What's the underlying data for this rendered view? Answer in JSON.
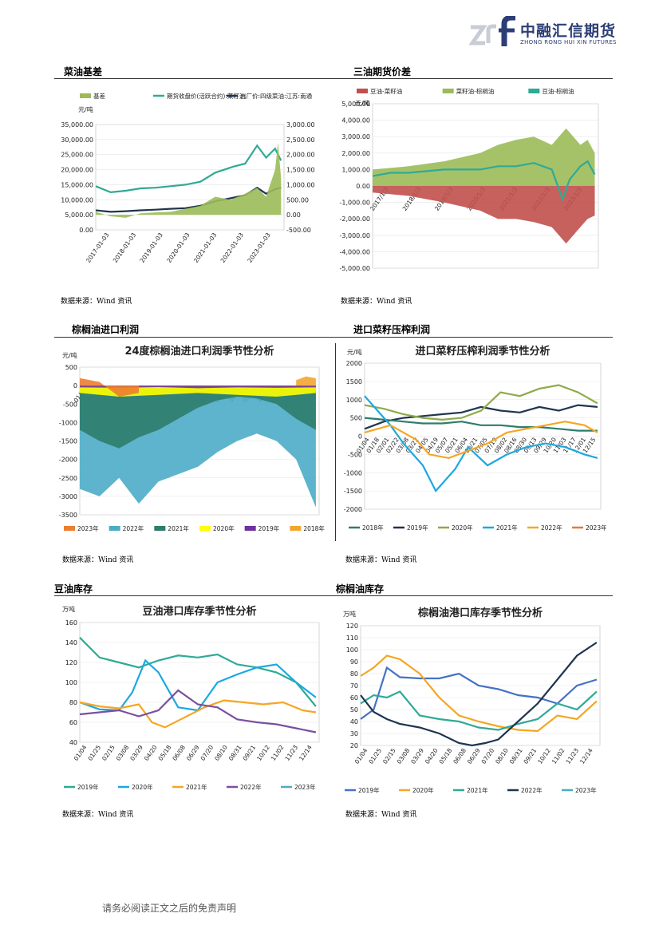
{
  "header": {
    "logo_cn": "中融汇信期货",
    "logo_en": "ZHONG RONG HUI XIN FUTURES"
  },
  "sections": {
    "s1": "菜油基差",
    "s2": "三油期货价差",
    "s3": "棕榈油进口利润",
    "s4": "进口菜籽压榨利润",
    "s5": "豆油库存",
    "s6": "棕榈油库存"
  },
  "source": "数据来源：Wind 资讯",
  "footer": "请务必阅读正文之后的免责声明",
  "chart_data": [
    {
      "id": "c1",
      "type": "line",
      "title": "",
      "unit_left": "元/吨",
      "legend": [
        "基差",
        "期货收盘价(活跃合约):菜籽油",
        "出厂价:四级菜油:江苏:南通"
      ],
      "colors": [
        "#9bbb59",
        "#2faa96",
        "#1f3550"
      ],
      "x_ticks": [
        "2017-01-03",
        "2018-01-03",
        "2019-01-03",
        "2020-01-03",
        "2021-01-03",
        "2022-01-03",
        "2023-01-03"
      ],
      "ylim_left": [
        0,
        35000
      ],
      "yticks_left": [
        "35,000.00",
        "30,000.00",
        "25,000.00",
        "20,000.00",
        "15,000.00",
        "10,000.00",
        "5,000.00",
        "0.00"
      ],
      "ylim_right": [
        -500,
        3000
      ],
      "yticks_right": [
        "3,000.00",
        "2,500.00",
        "2,000.00",
        "1,500.00",
        "1,000.00",
        "500.00",
        "0.00",
        "-500.00"
      ],
      "series": [
        {
          "name": "期货收盘价(活跃合约):菜籽油",
          "x": [
            2017,
            2017.5,
            2018,
            2018.5,
            2019,
            2019.5,
            2020,
            2020.5,
            2021,
            2021.3,
            2021.6,
            2022,
            2022.2,
            2022.4,
            2022.7,
            2023,
            2023.2
          ],
          "y": [
            14500,
            12500,
            13000,
            13800,
            14000,
            14500,
            15000,
            16000,
            19000,
            20000,
            21000,
            22000,
            25000,
            28000,
            24000,
            27000,
            23000
          ]
        },
        {
          "name": "出厂价:四级菜油:江苏:南通",
          "x": [
            2017,
            2017.5,
            2018,
            2018.5,
            2019,
            2019.5,
            2020,
            2020.5,
            2021,
            2021.5,
            2022,
            2022.4,
            2022.7,
            2023,
            2023.2
          ],
          "y": [
            6500,
            6000,
            6200,
            6500,
            6700,
            7000,
            7200,
            8000,
            9500,
            10500,
            11500,
            14000,
            12000,
            13500,
            14000
          ]
        },
        {
          "name": "基差",
          "x": [
            2017,
            2017.5,
            2018,
            2018.5,
            2019,
            2019.5,
            2020,
            2020.5,
            2021,
            2021.5,
            2022,
            2022.4,
            2022.7,
            2023,
            2023.1,
            2023.2
          ],
          "y": [
            100,
            -50,
            -100,
            50,
            80,
            100,
            200,
            300,
            600,
            500,
            700,
            900,
            600,
            1500,
            2400,
            1200
          ]
        }
      ]
    },
    {
      "id": "c2",
      "type": "area",
      "title": "",
      "unit": "元/吨",
      "legend": [
        "豆油-菜籽油",
        "菜籽油-棕榈油",
        "豆油-棕榈油"
      ],
      "colors": [
        "#c0504d",
        "#9bbb59",
        "#2faa96"
      ],
      "x_ticks": [
        "2017/1/3",
        "2018/1/3",
        "2019/1/3",
        "2020/1/3",
        "2021/1/3",
        "2022/1/3",
        "2023/1/3"
      ],
      "ylim": [
        -5000,
        5000
      ],
      "yticks": [
        "5,000.00",
        "4,000.00",
        "3,000.00",
        "2,000.00",
        "1,000.00",
        "0.00",
        "-1,000.00",
        "-2,000.00",
        "-3,000.00",
        "-4,000.00",
        "-5,000.00"
      ],
      "series": [
        {
          "name": "菜籽油-棕榈油",
          "x": [
            2017,
            2018,
            2019,
            2020,
            2020.5,
            2021,
            2021.5,
            2022,
            2022.4,
            2022.8,
            2023,
            2023.2
          ],
          "y": [
            1000,
            1200,
            1500,
            2000,
            2500,
            2800,
            3000,
            2500,
            3500,
            2500,
            2800,
            2000
          ]
        },
        {
          "name": "豆油-菜籽油",
          "x": [
            2017,
            2018,
            2019,
            2020,
            2020.5,
            2021,
            2021.5,
            2022,
            2022.4,
            2022.8,
            2023,
            2023.2
          ],
          "y": [
            -400,
            -600,
            -1000,
            -1500,
            -2000,
            -2000,
            -2200,
            -2500,
            -3500,
            -2500,
            -2000,
            -1800
          ]
        },
        {
          "name": "豆油-棕榈油",
          "x": [
            2017,
            2017.5,
            2018,
            2019,
            2020,
            2020.5,
            2021,
            2021.5,
            2022,
            2022.3,
            2022.5,
            2022.8,
            2023,
            2023.2
          ],
          "y": [
            600,
            800,
            800,
            1000,
            1000,
            1200,
            1200,
            1400,
            1000,
            -800,
            400,
            1200,
            1500,
            700
          ]
        }
      ]
    },
    {
      "id": "c3",
      "type": "area",
      "title": "24度棕榈油进口利润季节性分析",
      "unit": "元/吨",
      "legend": [
        "2023年",
        "2022年",
        "2021年",
        "2020年",
        "2019年",
        "2018年"
      ],
      "colors": [
        "#ed7d31",
        "#4bacc6",
        "#2e7d6b",
        "#ffff00",
        "#7030a0",
        "#f3a531"
      ],
      "x_ticks": [
        "01/04",
        "01/25",
        "02/15",
        "03/08",
        "03/29",
        "04/20",
        "05/18",
        "06/08",
        "06/29",
        "07/20",
        "08/10",
        "08/31",
        "09/21",
        "10/12",
        "11/02",
        "11/23",
        "12/14"
      ],
      "ylim": [
        -3500,
        500
      ],
      "yticks": [
        "500",
        "0",
        "-500",
        "-1000",
        "-1500",
        "-2000",
        "-2500",
        "-3000",
        "-3500"
      ],
      "series": [
        {
          "name": "2022年",
          "x": [
            0,
            30,
            60,
            90,
            120,
            150,
            180,
            210,
            240,
            270,
            300,
            330,
            360
          ],
          "y": [
            -2800,
            -3000,
            -2500,
            -3200,
            -2600,
            -2400,
            -2200,
            -1800,
            -1500,
            -1300,
            -1500,
            -2000,
            -3300
          ]
        },
        {
          "name": "2021年",
          "x": [
            0,
            30,
            60,
            90,
            120,
            150,
            180,
            210,
            240,
            270,
            300,
            330,
            360
          ],
          "y": [
            -1200,
            -1500,
            -1700,
            -1400,
            -1200,
            -900,
            -600,
            -400,
            -300,
            -350,
            -500,
            -900,
            -1200
          ]
        },
        {
          "name": "2020年",
          "x": [
            0,
            60,
            120,
            180,
            240,
            300,
            360
          ],
          "y": [
            -200,
            -300,
            -250,
            -200,
            -250,
            -300,
            -200
          ]
        },
        {
          "name": "2019年",
          "x": [
            0,
            60,
            120,
            180,
            240,
            300,
            360
          ],
          "y": [
            -50,
            -60,
            -40,
            -70,
            -50,
            -60,
            -50
          ]
        },
        {
          "name": "2023年",
          "x": [
            0,
            30,
            60,
            90
          ],
          "y": [
            200,
            100,
            -300,
            -200
          ]
        },
        {
          "name": "2018年",
          "x": [
            330,
            345,
            360
          ],
          "y": [
            150,
            250,
            200
          ]
        }
      ]
    },
    {
      "id": "c4",
      "type": "line",
      "title": "进口菜籽压榨利润季节性分析",
      "unit": "元/吨",
      "legend": [
        "2018年",
        "2019年",
        "2020年",
        "2021年",
        "2022年",
        "2023年"
      ],
      "colors": [
        "#2e7d6b",
        "#1f3550",
        "#8faa4a",
        "#1ba8e0",
        "#f5a623",
        "#e07b3c"
      ],
      "x_ticks": [
        "01/04",
        "01/18",
        "02/01",
        "02/22",
        "03/08",
        "03/22",
        "04/05",
        "04/19",
        "05/07",
        "05/21",
        "06/04",
        "06/21",
        "07/05",
        "07/19",
        "08/02",
        "08/16",
        "08/30",
        "09/13",
        "09/29",
        "10/20",
        "11/03",
        "11/17",
        "12/01",
        "12/15"
      ],
      "ylim": [
        -2000,
        2000
      ],
      "yticks": [
        "2000",
        "1500",
        "1000",
        "500",
        "0",
        "-500",
        "-1000",
        "-1500",
        "-2000"
      ],
      "series": [
        {
          "name": "2019年",
          "x": [
            0,
            30,
            60,
            90,
            120,
            150,
            180,
            210,
            240,
            270,
            300,
            330,
            360
          ],
          "y": [
            200,
            400,
            500,
            550,
            600,
            650,
            800,
            700,
            650,
            800,
            700,
            850,
            800
          ]
        },
        {
          "name": "2020年",
          "x": [
            0,
            30,
            60,
            90,
            120,
            150,
            180,
            210,
            240,
            270,
            300,
            330,
            360
          ],
          "y": [
            850,
            750,
            600,
            500,
            450,
            500,
            700,
            1200,
            1100,
            1300,
            1400,
            1200,
            900
          ]
        },
        {
          "name": "2018年",
          "x": [
            0,
            30,
            60,
            90,
            120,
            150,
            180,
            210,
            240,
            270,
            300,
            330,
            360
          ],
          "y": [
            500,
            450,
            400,
            350,
            350,
            400,
            300,
            300,
            250,
            250,
            200,
            150,
            150
          ]
        },
        {
          "name": "2021年",
          "x": [
            0,
            20,
            40,
            60,
            90,
            110,
            140,
            160,
            190,
            220,
            250,
            280,
            310,
            340,
            360
          ],
          "y": [
            1100,
            700,
            300,
            -200,
            -800,
            -1500,
            -900,
            -300,
            -800,
            -500,
            -300,
            -200,
            -300,
            -500,
            -600
          ]
        },
        {
          "name": "2022年",
          "x": [
            0,
            40,
            80,
            100,
            130,
            160,
            190,
            220,
            250,
            280,
            310,
            340,
            360
          ],
          "y": [
            100,
            300,
            -100,
            -500,
            -600,
            -400,
            -200,
            100,
            200,
            300,
            400,
            300,
            100
          ]
        }
      ]
    },
    {
      "id": "c5",
      "type": "line",
      "title": "豆油港口库存季节性分析",
      "unit": "万吨",
      "legend": [
        "2019年",
        "2020年",
        "2021年",
        "2022年",
        "2023年"
      ],
      "colors": [
        "#2faa96",
        "#1ba8e0",
        "#f5a623",
        "#7b4fa0",
        "#4bacc6"
      ],
      "x_ticks": [
        "01/04",
        "01/25",
        "02/15",
        "03/08",
        "03/29",
        "04/20",
        "05/18",
        "06/08",
        "06/29",
        "07/20",
        "08/10",
        "08/31",
        "09/21",
        "10/12",
        "11/02",
        "11/23",
        "12/14"
      ],
      "ylim": [
        40,
        160
      ],
      "yticks": [
        "160",
        "140",
        "120",
        "100",
        "80",
        "60",
        "40"
      ],
      "series": [
        {
          "name": "2019年",
          "x": [
            0,
            30,
            60,
            90,
            120,
            150,
            180,
            210,
            240,
            270,
            300,
            330,
            360
          ],
          "y": [
            145,
            125,
            120,
            115,
            122,
            127,
            125,
            128,
            118,
            115,
            110,
            100,
            76
          ]
        },
        {
          "name": "2020年",
          "x": [
            0,
            30,
            60,
            80,
            100,
            120,
            150,
            180,
            210,
            240,
            270,
            300,
            330,
            360
          ],
          "y": [
            80,
            73,
            72,
            90,
            122,
            110,
            75,
            72,
            100,
            108,
            115,
            118,
            100,
            85
          ]
        },
        {
          "name": "2021年",
          "x": [
            0,
            30,
            60,
            90,
            110,
            130,
            160,
            190,
            220,
            250,
            280,
            310,
            340,
            360
          ],
          "y": [
            80,
            76,
            74,
            78,
            60,
            55,
            65,
            75,
            82,
            80,
            78,
            80,
            72,
            70
          ]
        },
        {
          "name": "2022年",
          "x": [
            0,
            30,
            60,
            90,
            120,
            150,
            180,
            210,
            240,
            270,
            300,
            330,
            360
          ],
          "y": [
            68,
            70,
            72,
            66,
            72,
            92,
            78,
            75,
            63,
            60,
            58,
            54,
            50
          ]
        }
      ]
    },
    {
      "id": "c6",
      "type": "line",
      "title": "棕榈油港口库存季节性分析",
      "unit": "万吨",
      "legend": [
        "2019年",
        "2020年",
        "2021年",
        "2022年",
        "2023年"
      ],
      "colors": [
        "#4472c4",
        "#f5a623",
        "#2faa96",
        "#1f3550",
        "#4bacc6"
      ],
      "x_ticks": [
        "01/04",
        "01/25",
        "02/15",
        "03/08",
        "03/29",
        "04/20",
        "05/18",
        "06/08",
        "06/29",
        "07/20",
        "08/10",
        "08/31",
        "09/21",
        "10/12",
        "11/02",
        "11/23",
        "12/14"
      ],
      "ylim": [
        20,
        120
      ],
      "yticks": [
        "120",
        "110",
        "100",
        "90",
        "80",
        "70",
        "60",
        "50",
        "40",
        "30",
        "20"
      ],
      "series": [
        {
          "name": "2019年",
          "x": [
            0,
            20,
            40,
            60,
            90,
            120,
            150,
            180,
            210,
            240,
            270,
            300,
            330,
            360
          ],
          "y": [
            42,
            50,
            85,
            77,
            76,
            76,
            80,
            70,
            67,
            62,
            60,
            55,
            70,
            75
          ]
        },
        {
          "name": "2020年",
          "x": [
            0,
            20,
            40,
            60,
            90,
            120,
            150,
            180,
            210,
            240,
            270,
            300,
            330,
            360
          ],
          "y": [
            78,
            85,
            95,
            92,
            80,
            60,
            45,
            40,
            36,
            33,
            32,
            45,
            42,
            57
          ]
        },
        {
          "name": "2021年",
          "x": [
            0,
            20,
            40,
            60,
            90,
            120,
            150,
            180,
            210,
            240,
            270,
            300,
            330,
            360
          ],
          "y": [
            55,
            62,
            60,
            65,
            45,
            42,
            40,
            35,
            33,
            38,
            42,
            55,
            50,
            65
          ]
        },
        {
          "name": "2022年",
          "x": [
            0,
            20,
            40,
            60,
            90,
            120,
            150,
            170,
            190,
            210,
            240,
            270,
            300,
            330,
            360
          ],
          "y": [
            62,
            48,
            42,
            38,
            35,
            30,
            22,
            20,
            22,
            25,
            40,
            55,
            75,
            95,
            106
          ]
        }
      ]
    }
  ]
}
